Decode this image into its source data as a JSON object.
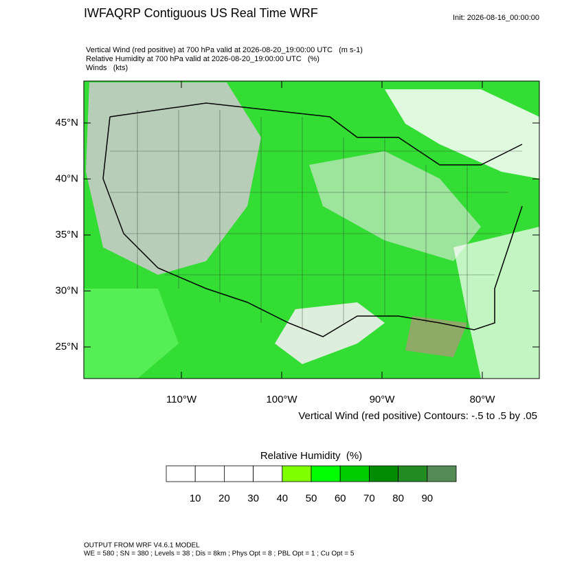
{
  "header": {
    "title": "IWFAQRP Contiguous US Real Time WRF",
    "init": "Init: 2026-08-16_00:00:00"
  },
  "subtitles": [
    "Vertical Wind (red positive) at 700 hPa valid at 2026-08-20_19:00:00 UTC   (m s-1)",
    "Relative Humidity at 700 hPa valid at 2026-08-20_19:00:00 UTC   (%)",
    "Winds   (kts)"
  ],
  "map": {
    "lat_ticks": [
      {
        "value": 45,
        "label": "45°N"
      },
      {
        "value": 40,
        "label": "40°N"
      },
      {
        "value": 35,
        "label": "35°N"
      },
      {
        "value": 30,
        "label": "30°N"
      },
      {
        "value": 25,
        "label": "25°N"
      }
    ],
    "lon_ticks": [
      {
        "value": -110,
        "label": "110°W"
      },
      {
        "value": -100,
        "label": "100°W"
      },
      {
        "value": -90,
        "label": "90°W"
      },
      {
        "value": -80,
        "label": "80°W"
      }
    ],
    "contour_note": "Vertical Wind (red positive) Contours: -.5 to .5 by .05"
  },
  "colorbar": {
    "title": "Relative Humidity  (%)",
    "range": [
      0,
      100
    ],
    "colors": [
      "#ffffff",
      "#ffffff",
      "#ffffff",
      "#ffffff",
      "#80ff00",
      "#00ff00",
      "#00cd00",
      "#008b00",
      "#228b22",
      "#548b54"
    ],
    "ticks": [
      10,
      20,
      30,
      40,
      50,
      60,
      70,
      80,
      90
    ]
  },
  "footer": [
    "OUTPUT FROM WRF V4.6.1 MODEL",
    "WE = 580 ; SN = 380 ; Levels = 38 ; Dis = 8km ; Phys Opt = 8 ; PBL Opt = 1 ; Cu Opt = 5"
  ]
}
